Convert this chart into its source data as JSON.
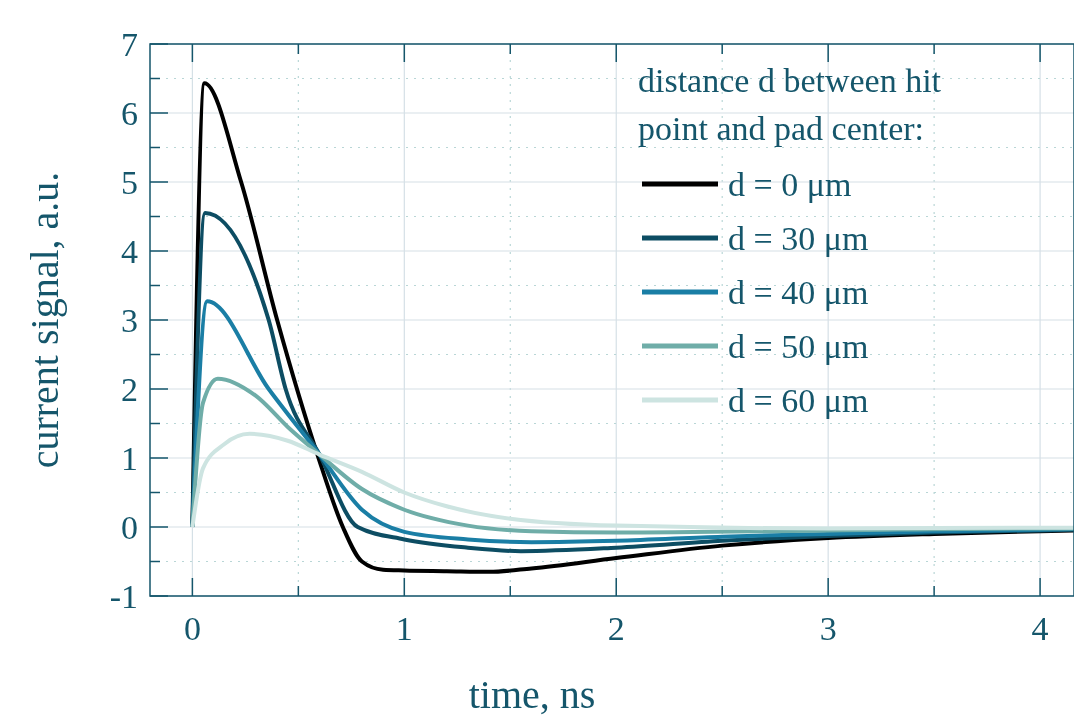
{
  "chart_data": {
    "type": "line",
    "xlabel": "time, ns",
    "ylabel": "current signal, a.u.",
    "legend_title": "distance d between hit point and pad center:",
    "legend": "top right",
    "grid": true,
    "line_style": "solid",
    "marker": "none",
    "xlim": [
      -0.2,
      4.16
    ],
    "ylim": [
      -1,
      7
    ],
    "xticks": [
      0,
      {
        "value": 0.5,
        "label": null
      },
      1,
      {
        "value": 1.5,
        "label": null
      },
      2,
      {
        "value": 2.5,
        "label": null
      },
      3,
      {
        "value": 3.5,
        "label": null
      },
      4
    ],
    "yticks": [
      {
        "value": -1,
        "label": "-1"
      },
      {
        "value": -0.5,
        "label": null
      },
      0,
      {
        "value": 0.5,
        "label": null
      },
      1,
      {
        "value": 1.5,
        "label": null
      },
      2,
      {
        "value": 2.5,
        "label": null
      },
      3,
      {
        "value": 3.5,
        "label": null
      },
      4,
      {
        "value": 4.5,
        "label": null
      },
      5,
      {
        "value": 5.5,
        "label": null
      },
      6,
      {
        "value": 6.5,
        "label": null
      },
      7
    ],
    "series": [
      {
        "name": "d = 0 μm",
        "color": "#000000",
        "x": [
          0,
          0.057,
          0.23,
          0.4,
          0.59,
          0.71,
          0.8,
          0.9,
          1.0,
          1.2,
          1.4,
          1.6,
          2.0,
          2.5,
          3.0,
          3.5,
          4.0,
          4.16
        ],
        "values": [
          0,
          6.43,
          5,
          3,
          1.05,
          0,
          -0.5,
          -0.62,
          -0.63,
          -0.64,
          -0.65,
          -0.6,
          -0.45,
          -0.27,
          -0.16,
          -0.1,
          -0.06,
          -0.05
        ]
      },
      {
        "name": "d = 30 μm",
        "color": "#0d4d63",
        "x": [
          0,
          0.06,
          0.36,
          0.44,
          0.6,
          0.78,
          1.0,
          1.3,
          1.55,
          2.0,
          2.5,
          3.0,
          3.5,
          4.0,
          4.16
        ],
        "values": [
          0,
          4.55,
          3,
          2,
          1.05,
          0,
          -0.18,
          -0.3,
          -0.35,
          -0.3,
          -0.2,
          -0.13,
          -0.08,
          -0.05,
          -0.04
        ]
      },
      {
        "name": "d = 40 μm",
        "color": "#1a7ea5",
        "x": [
          0,
          0.07,
          0.36,
          0.6,
          0.8,
          1.0,
          1.3,
          1.6,
          2.0,
          2.5,
          3.0,
          3.5,
          4.0,
          4.16
        ],
        "values": [
          0,
          3.27,
          2,
          1.05,
          0.25,
          -0.07,
          -0.18,
          -0.22,
          -0.2,
          -0.14,
          -0.1,
          -0.06,
          -0.04,
          -0.03
        ]
      },
      {
        "name": "d = 50 μm",
        "color": "#6fada8",
        "x": [
          0,
          0.05,
          0.12,
          0.3,
          0.45,
          0.6,
          0.8,
          1.0,
          1.3,
          1.6,
          2.0,
          3.0,
          4.0,
          4.16
        ],
        "values": [
          0,
          1.8,
          2.15,
          1.9,
          1.45,
          1.05,
          0.55,
          0.25,
          0.02,
          -0.06,
          -0.08,
          -0.05,
          -0.02,
          -0.02
        ]
      },
      {
        "name": "d = 60 μm",
        "color": "#cde4e1",
        "x": [
          0,
          0.05,
          0.15,
          0.27,
          0.45,
          0.6,
          0.8,
          1.0,
          1.2,
          1.5,
          2.0,
          3.0,
          4.0,
          4.16
        ],
        "values": [
          0,
          0.85,
          1.2,
          1.35,
          1.25,
          1.05,
          0.8,
          0.5,
          0.3,
          0.12,
          0.02,
          -0.02,
          -0.01,
          -0.01
        ]
      }
    ]
  }
}
